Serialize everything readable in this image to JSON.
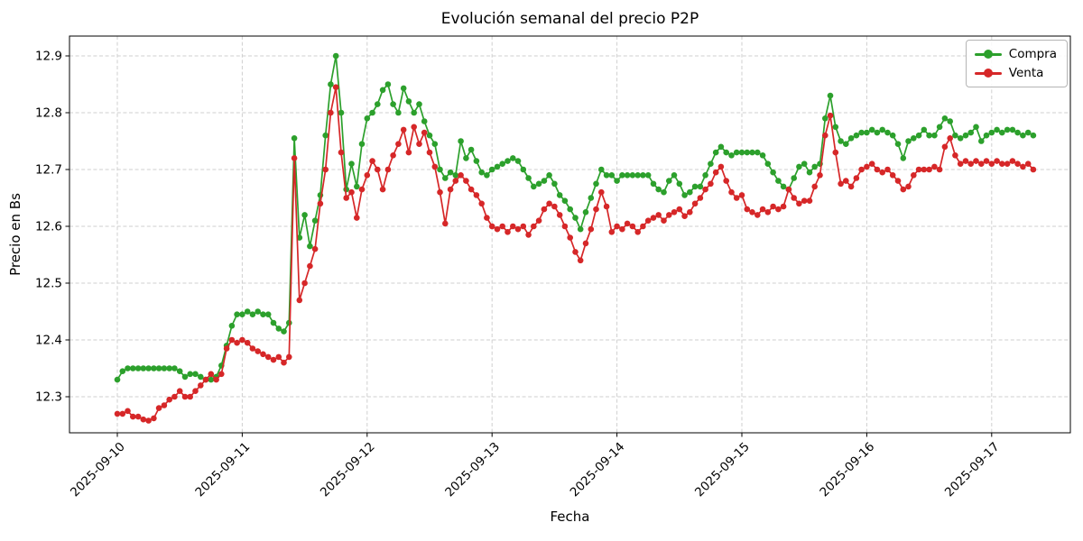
{
  "chart_data": {
    "type": "line",
    "title": "Evolución semanal del precio P2P",
    "xlabel": "Fecha",
    "ylabel": "Precio en Bs",
    "x_start": "2025-09-10 00:00",
    "x_step_hours": 1,
    "x_tick_labels": [
      "2025-09-10",
      "2025-09-11",
      "2025-09-12",
      "2025-09-13",
      "2025-09-14",
      "2025-09-15",
      "2025-09-16",
      "2025-09-17"
    ],
    "y_ticks": [
      12.3,
      12.4,
      12.5,
      12.6,
      12.7,
      12.8,
      12.9
    ],
    "ylim": [
      12.24,
      12.95
    ],
    "grid": "dashed",
    "legend_position": "upper right",
    "series": [
      {
        "name": "Compra",
        "color": "#2ca02c",
        "values": [
          12.33,
          12.345,
          12.35,
          12.35,
          12.35,
          12.35,
          12.35,
          12.35,
          12.35,
          12.35,
          12.35,
          12.35,
          12.345,
          12.335,
          12.34,
          12.34,
          12.335,
          12.33,
          12.33,
          12.335,
          12.355,
          12.39,
          12.425,
          12.445,
          12.445,
          12.45,
          12.445,
          12.45,
          12.445,
          12.445,
          12.43,
          12.42,
          12.415,
          12.43,
          12.755,
          12.58,
          12.62,
          12.565,
          12.61,
          12.655,
          12.76,
          12.85,
          12.9,
          12.8,
          12.665,
          12.71,
          12.67,
          12.745,
          12.79,
          12.8,
          12.815,
          12.84,
          12.85,
          12.815,
          12.8,
          12.843,
          12.82,
          12.8,
          12.815,
          12.785,
          12.76,
          12.745,
          12.7,
          12.685,
          12.695,
          12.69,
          12.75,
          12.72,
          12.735,
          12.715,
          12.695,
          12.69,
          12.7,
          12.705,
          12.71,
          12.715,
          12.72,
          12.715,
          12.7,
          12.685,
          12.67,
          12.675,
          12.68,
          12.69,
          12.675,
          12.655,
          12.645,
          12.63,
          12.615,
          12.595,
          12.625,
          12.65,
          12.675,
          12.7,
          12.69,
          12.69,
          12.68,
          12.69,
          12.69,
          12.69,
          12.69,
          12.69,
          12.69,
          12.675,
          12.665,
          12.66,
          12.68,
          12.69,
          12.675,
          12.655,
          12.66,
          12.67,
          12.67,
          12.69,
          12.71,
          12.73,
          12.74,
          12.73,
          12.725,
          12.73,
          12.73,
          12.73,
          12.73,
          12.73,
          12.725,
          12.71,
          12.695,
          12.68,
          12.67,
          12.665,
          12.685,
          12.705,
          12.71,
          12.695,
          12.705,
          12.71,
          12.79,
          12.83,
          12.775,
          12.75,
          12.745,
          12.755,
          12.76,
          12.765,
          12.765,
          12.77,
          12.765,
          12.77,
          12.765,
          12.76,
          12.745,
          12.72,
          12.75,
          12.755,
          12.76,
          12.77,
          12.76,
          12.76,
          12.775,
          12.79,
          12.785,
          12.76,
          12.755,
          12.76,
          12.765,
          12.775,
          12.75,
          12.76,
          12.765,
          12.77,
          12.765,
          12.77,
          12.77,
          12.765,
          12.76,
          12.765,
          12.76
        ]
      },
      {
        "name": "Venta",
        "color": "#d62728",
        "values": [
          12.27,
          12.27,
          12.275,
          12.265,
          12.265,
          12.26,
          12.258,
          12.262,
          12.28,
          12.285,
          12.295,
          12.3,
          12.31,
          12.3,
          12.3,
          12.31,
          12.32,
          12.33,
          12.34,
          12.33,
          12.34,
          12.385,
          12.4,
          12.395,
          12.4,
          12.395,
          12.385,
          12.38,
          12.375,
          12.37,
          12.365,
          12.37,
          12.36,
          12.37,
          12.72,
          12.47,
          12.5,
          12.53,
          12.56,
          12.64,
          12.7,
          12.8,
          12.845,
          12.73,
          12.65,
          12.66,
          12.615,
          12.665,
          12.69,
          12.715,
          12.7,
          12.665,
          12.7,
          12.725,
          12.745,
          12.77,
          12.73,
          12.775,
          12.745,
          12.765,
          12.73,
          12.705,
          12.66,
          12.605,
          12.665,
          12.68,
          12.69,
          12.68,
          12.665,
          12.655,
          12.64,
          12.615,
          12.6,
          12.595,
          12.6,
          12.59,
          12.6,
          12.595,
          12.6,
          12.585,
          12.6,
          12.61,
          12.63,
          12.64,
          12.635,
          12.62,
          12.6,
          12.58,
          12.555,
          12.54,
          12.57,
          12.595,
          12.63,
          12.66,
          12.635,
          12.59,
          12.6,
          12.595,
          12.605,
          12.6,
          12.59,
          12.6,
          12.61,
          12.615,
          12.62,
          12.61,
          12.62,
          12.625,
          12.63,
          12.618,
          12.625,
          12.64,
          12.65,
          12.665,
          12.675,
          12.695,
          12.705,
          12.68,
          12.66,
          12.65,
          12.655,
          12.63,
          12.625,
          12.62,
          12.63,
          12.625,
          12.635,
          12.63,
          12.635,
          12.665,
          12.65,
          12.64,
          12.645,
          12.645,
          12.67,
          12.69,
          12.76,
          12.795,
          12.73,
          12.675,
          12.68,
          12.67,
          12.685,
          12.7,
          12.705,
          12.71,
          12.7,
          12.695,
          12.7,
          12.69,
          12.68,
          12.665,
          12.67,
          12.69,
          12.7,
          12.7,
          12.7,
          12.705,
          12.7,
          12.74,
          12.755,
          12.725,
          12.71,
          12.715,
          12.71,
          12.715,
          12.71,
          12.715,
          12.71,
          12.715,
          12.71,
          12.71,
          12.715,
          12.71,
          12.705,
          12.71,
          12.7
        ]
      }
    ]
  }
}
